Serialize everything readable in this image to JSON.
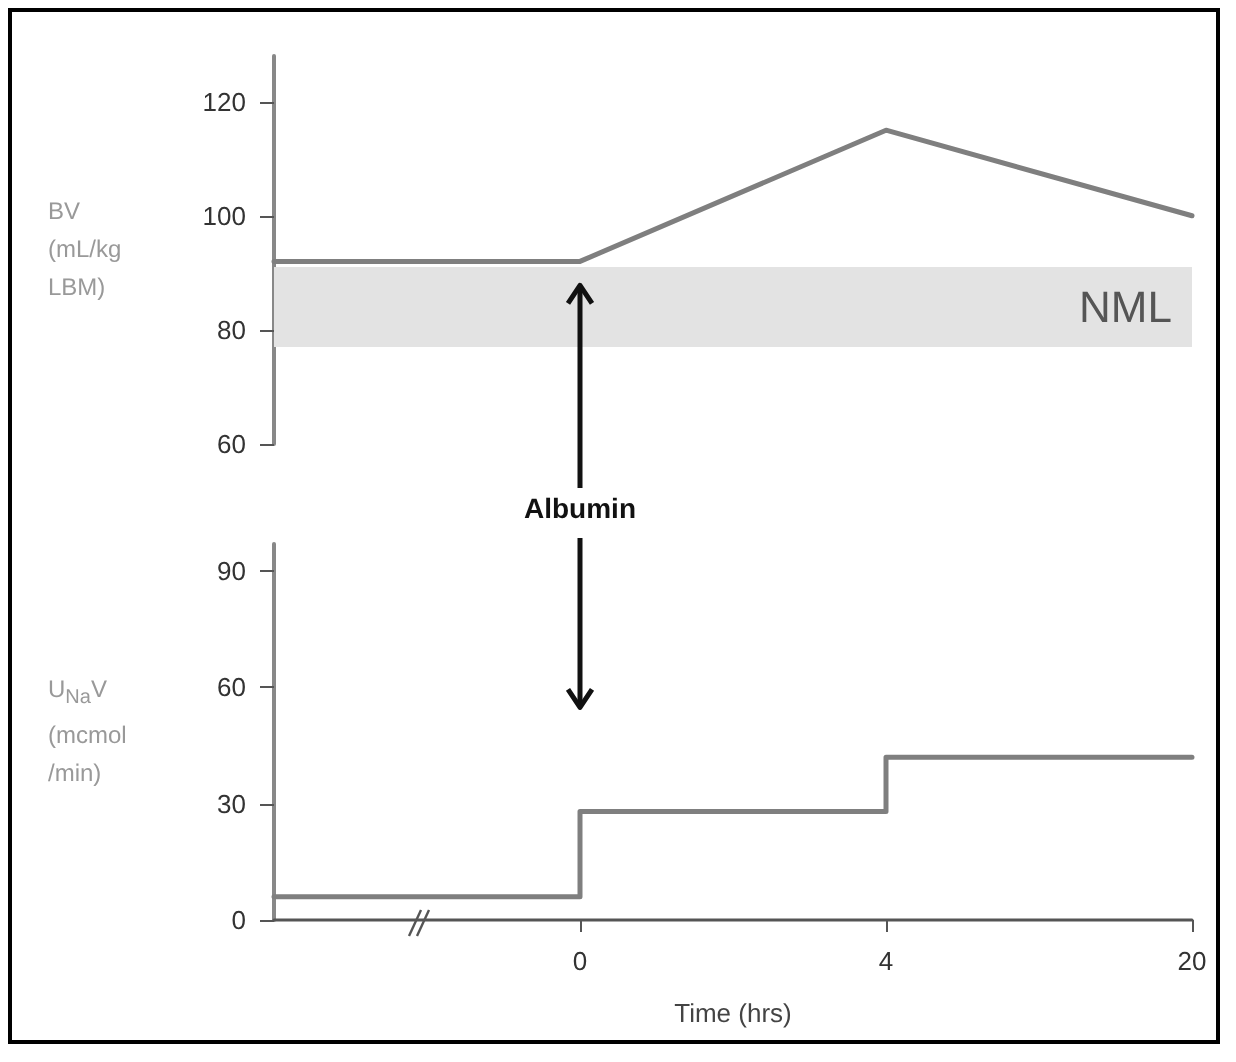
{
  "chart_data": [
    {
      "type": "line",
      "ylabel": "BV\n(mL/kg\nLBM)",
      "categories": [
        null,
        "0",
        "4",
        "20"
      ],
      "series": [
        {
          "color": "#7f7f7f",
          "values": [
            92,
            92,
            115,
            100
          ]
        }
      ],
      "ylim": [
        60,
        128
      ],
      "yticks": [
        60,
        80,
        100,
        120
      ],
      "tick_labels": "y",
      "grid": false,
      "marker": "none",
      "line_style": "solid",
      "bands": [
        {
          "axis": "y",
          "from": 77,
          "to": 91,
          "label": "NML",
          "color": "#e3e3e3"
        }
      ]
    },
    {
      "type": "step",
      "xlabel": "Time (hrs)",
      "ylabel": "U$_{Na}$V\n(mcmol\n/min)",
      "categories": [
        null,
        "0",
        "4",
        "20"
      ],
      "series": [
        {
          "color": "#7f7f7f",
          "values": [
            6,
            28,
            42,
            42
          ]
        }
      ],
      "ylim": [
        0,
        97
      ],
      "yticks": [
        0,
        30,
        60,
        90
      ],
      "grid": false,
      "marker": "none",
      "line_style": "solid",
      "annotations": [
        {
          "text": "Albumin",
          "x": "0"
        }
      ]
    }
  ]
}
